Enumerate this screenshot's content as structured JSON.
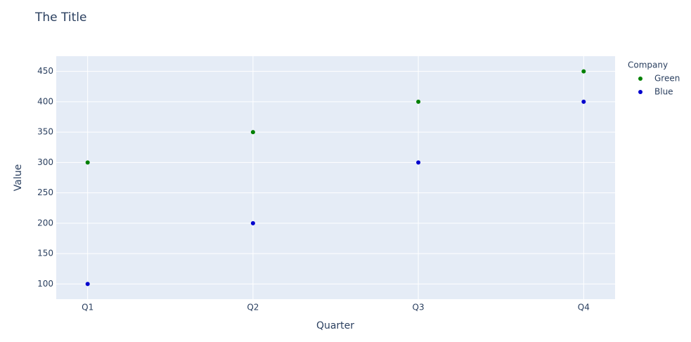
{
  "chart_data": {
    "type": "scatter",
    "title": "The Title",
    "x_label": "Quarter",
    "y_label": "Value",
    "legend_title": "Company",
    "categories": [
      "Q1",
      "Q2",
      "Q3",
      "Q4"
    ],
    "series": [
      {
        "name": "Green",
        "color": "#008000",
        "values": [
          300,
          350,
          400,
          450
        ]
      },
      {
        "name": "Blue",
        "color": "#0000cd",
        "values": [
          100,
          200,
          300,
          400
        ]
      }
    ],
    "ylim": [
      75,
      475
    ],
    "yticks": [
      100,
      150,
      200,
      250,
      300,
      350,
      400,
      450
    ],
    "grid": true
  }
}
